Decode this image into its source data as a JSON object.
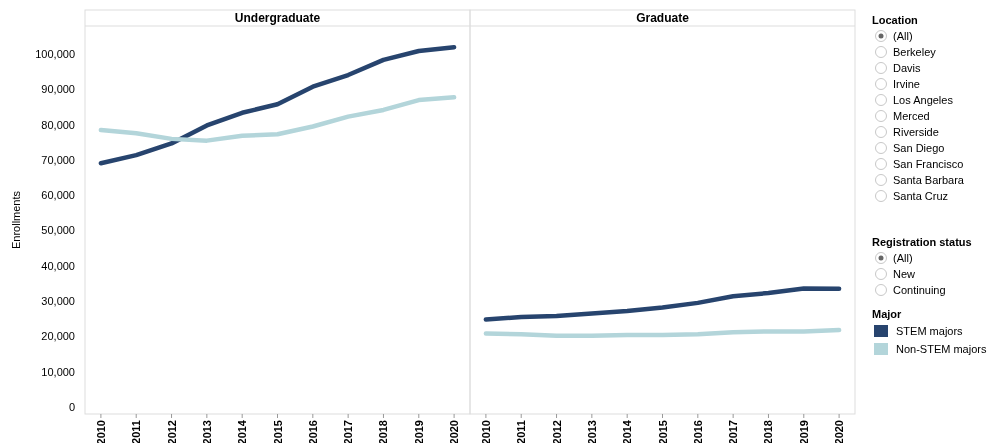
{
  "chart_data": [
    {
      "type": "line",
      "title": "Undergraduate",
      "ylabel": "Enrollments",
      "legend": "right",
      "legend_title": "Major",
      "categories": [
        "2010",
        "2011",
        "2012",
        "2013",
        "2014",
        "2015",
        "2016",
        "2017",
        "2018",
        "2019",
        "2020"
      ],
      "ylim": [
        -2000,
        108000
      ],
      "yticks": [
        {
          "value": 0,
          "label": "0"
        },
        {
          "value": 10000,
          "label": "10,000"
        },
        {
          "value": 20000,
          "label": "20,000"
        },
        {
          "value": 30000,
          "label": "30,000"
        },
        {
          "value": 40000,
          "label": "40,000"
        },
        {
          "value": 50000,
          "label": "50,000"
        },
        {
          "value": 60000,
          "label": "60,000"
        },
        {
          "value": 70000,
          "label": "70,000"
        },
        {
          "value": 80000,
          "label": "80,000"
        },
        {
          "value": 90000,
          "label": "90,000"
        },
        {
          "value": 100000,
          "label": "100,000"
        }
      ],
      "grid": false,
      "marker": "none",
      "line_style": "solid",
      "series": [
        {
          "name": "STEM majors",
          "color": "#27446e",
          "values": [
            69100,
            71400,
            74700,
            79800,
            83400,
            85800,
            90800,
            94100,
            98400,
            100900,
            102000
          ]
        },
        {
          "name": "Non-STEM majors",
          "color": "#b3d5da",
          "values": [
            78500,
            77600,
            76000,
            75500,
            76900,
            77300,
            79500,
            82300,
            84200,
            87000,
            87800
          ]
        }
      ]
    },
    {
      "type": "line",
      "title": "Graduate",
      "categories": [
        "2010",
        "2011",
        "2012",
        "2013",
        "2014",
        "2015",
        "2016",
        "2017",
        "2018",
        "2019",
        "2020"
      ],
      "ylim": [
        -2000,
        108000
      ],
      "tick_labels": "x",
      "grid": false,
      "marker": "none",
      "line_style": "solid",
      "series": [
        {
          "color": "#27446e",
          "values": [
            24800,
            25500,
            25800,
            26500,
            27200,
            28200,
            29500,
            31400,
            32300,
            33600,
            33500
          ]
        },
        {
          "color": "#b3d5da",
          "values": [
            20800,
            20600,
            20200,
            20200,
            20400,
            20400,
            20600,
            21200,
            21400,
            21400,
            21800
          ]
        }
      ]
    },
    {
      "type": "other",
      "title": "Location",
      "categories": [
        "(All)",
        "Berkeley",
        "Davis",
        "Irvine",
        "Los Angeles",
        "Merced",
        "Riverside",
        "San Diego",
        "San Francisco",
        "Santa Barbara",
        "Santa Cruz"
      ]
    },
    {
      "type": "other",
      "title": "Registration status",
      "categories": [
        "(All)",
        "New",
        "Continuing"
      ]
    }
  ]
}
